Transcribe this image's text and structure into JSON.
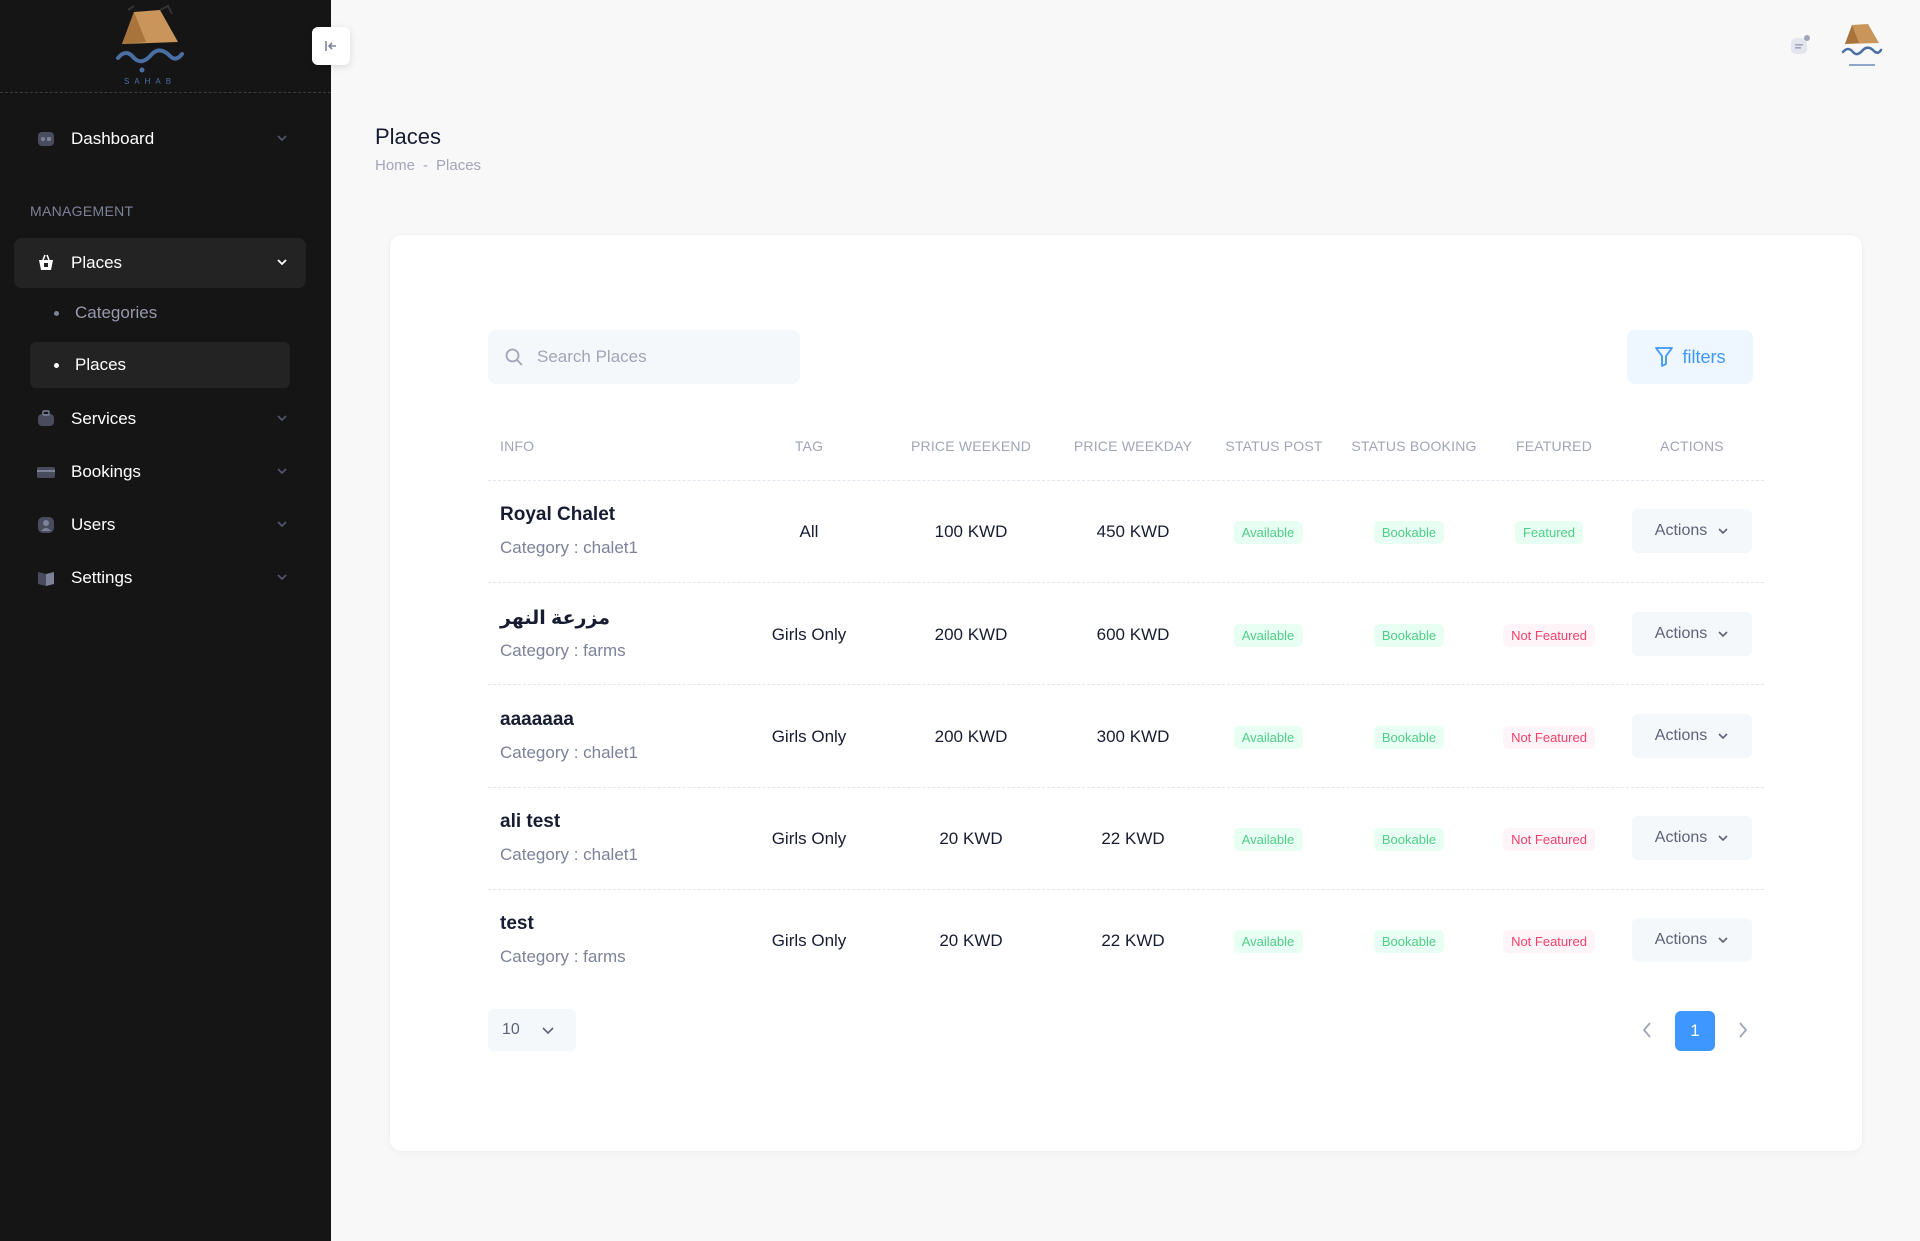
{
  "brand": {
    "logo_subtext": "SAHAB",
    "colors": {
      "sidebar_bg": "#151515",
      "accent": "#3e97ff",
      "success": "#50cd89",
      "danger": "#f1416c"
    }
  },
  "sidebar": {
    "collapse_icon": "arrow-left-to-bar-icon",
    "dashboard": {
      "label": "Dashboard",
      "icon": "dashboard-icon"
    },
    "section_label": "MANAGEMENT",
    "places": {
      "label": "Places",
      "icon": "basket-icon"
    },
    "places_sub": [
      {
        "label": "Categories"
      },
      {
        "label": "Places"
      }
    ],
    "services": {
      "label": "Services",
      "icon": "briefcase-icon"
    },
    "bookings": {
      "label": "Bookings",
      "icon": "card-icon"
    },
    "users": {
      "label": "Users",
      "icon": "user-icon"
    },
    "settings": {
      "label": "Settings",
      "icon": "book-icon"
    }
  },
  "header": {
    "notification_icon": "notification-icon",
    "avatar": "avatar"
  },
  "page": {
    "title": "Places",
    "breadcrumb": {
      "home": "Home",
      "separator": "-",
      "current": "Places"
    }
  },
  "toolbar": {
    "search_placeholder": "Search Places",
    "filters_label": "filters"
  },
  "table": {
    "headers": {
      "info": "INFO",
      "tag": "TAG",
      "price_weekend": "PRICE WEEKEND",
      "price_weekday": "PRICE WEEKDAY",
      "status_post": "STATUS POST",
      "status_booking": "STATUS BOOKING",
      "featured": "FEATURED",
      "actions": "ACTIONS"
    },
    "rows": [
      {
        "name": "Royal Chalet",
        "category": "Category : chalet1",
        "tag": "All",
        "price_weekend": "100 KWD",
        "price_weekday": "450 KWD",
        "status_post": "Available",
        "status_booking": "Bookable",
        "featured": "Featured",
        "action": "Actions"
      },
      {
        "name": "مزرعة النهر",
        "category": "Category : farms",
        "tag": "Girls Only",
        "price_weekend": "200 KWD",
        "price_weekday": "600 KWD",
        "status_post": "Available",
        "status_booking": "Bookable",
        "featured": "Not Featured",
        "action": "Actions"
      },
      {
        "name": "aaaaaaa",
        "category": "Category : chalet1",
        "tag": "Girls Only",
        "price_weekend": "200 KWD",
        "price_weekday": "300 KWD",
        "status_post": "Available",
        "status_booking": "Bookable",
        "featured": "Not Featured",
        "action": "Actions"
      },
      {
        "name": "ali test",
        "category": "Category : chalet1",
        "tag": "Girls Only",
        "price_weekend": "20 KWD",
        "price_weekday": "22 KWD",
        "status_post": "Available",
        "status_booking": "Bookable",
        "featured": "Not Featured",
        "action": "Actions"
      },
      {
        "name": "test",
        "category": "Category : farms",
        "tag": "Girls Only",
        "price_weekend": "20 KWD",
        "price_weekday": "22 KWD",
        "status_post": "Available",
        "status_booking": "Bookable",
        "featured": "Not Featured",
        "action": "Actions"
      }
    ]
  },
  "pagination": {
    "page_size": "10",
    "current_page": "1"
  }
}
